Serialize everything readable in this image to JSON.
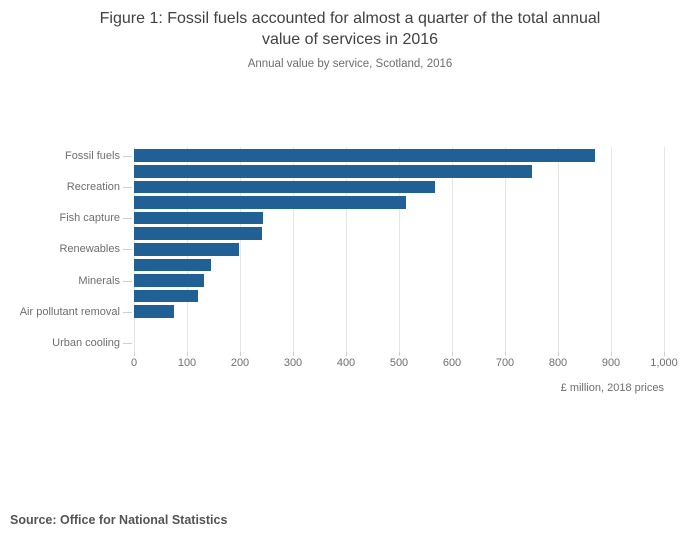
{
  "header": {
    "title_line1": "Figure 1: Fossil fuels accounted for almost a quarter of the total annual",
    "title_line2": "value of services in 2016",
    "subtitle": "Annual value by service, Scotland, 2016"
  },
  "chart_data": {
    "type": "bar",
    "orientation": "horizontal",
    "title": "Figure 1: Fossil fuels accounted for almost a quarter of the total annual value of services in 2016",
    "subtitle": "Annual value by service, Scotland, 2016",
    "xlabel": "£ million, 2018 prices",
    "xlim": [
      0,
      1000
    ],
    "x_ticks": [
      "0",
      "100",
      "200",
      "300",
      "400",
      "500",
      "600",
      "700",
      "800",
      "900",
      "1,000"
    ],
    "grid": true,
    "bar_color": "#206095",
    "layout_note": "13 bar slots; category tick labels shown only on alternate slots",
    "bars": [
      {
        "label": "Fossil fuels",
        "value": 870
      },
      {
        "label": "",
        "value": 750
      },
      {
        "label": "Recreation",
        "value": 568
      },
      {
        "label": "",
        "value": 513
      },
      {
        "label": "Fish capture",
        "value": 243
      },
      {
        "label": "",
        "value": 242
      },
      {
        "label": "Renewables",
        "value": 198
      },
      {
        "label": "",
        "value": 145
      },
      {
        "label": "Minerals",
        "value": 132
      },
      {
        "label": "",
        "value": 121
      },
      {
        "label": "Air pollutant removal",
        "value": 75
      },
      {
        "label": "",
        "value": 0
      },
      {
        "label": "Urban cooling",
        "value": 0
      }
    ]
  },
  "footer": {
    "source": "Source: Office for National Statistics"
  },
  "colors": {
    "bar": "#206095",
    "gridline": "#e6e6e6",
    "axis_tick": "#c6d0e0",
    "title_text": "#414042",
    "muted_text": "#6e6e6e",
    "source_text": "#545454"
  }
}
